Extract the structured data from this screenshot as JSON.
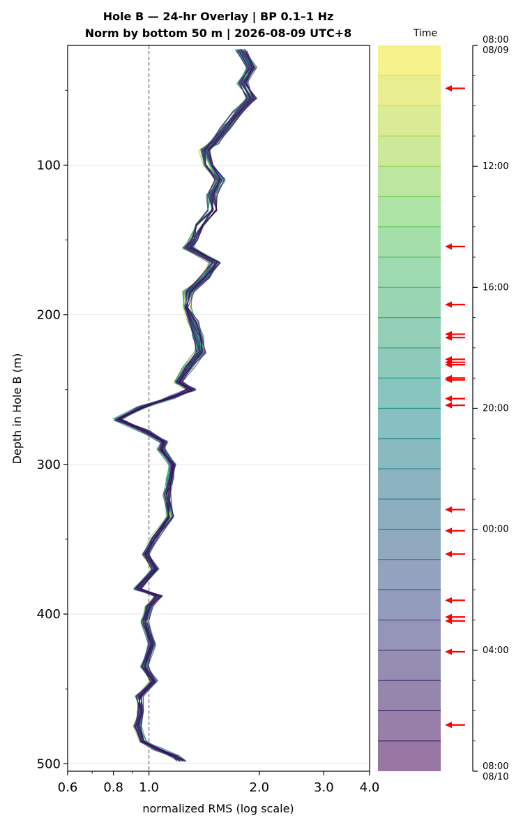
{
  "chart_data": {
    "type": "line",
    "title_line1": "Hole B — 24-hr Overlay  |  BP 0.1–1 Hz",
    "title_line2": "Norm by bottom 50 m  |  2026-08-09 UTC+8",
    "xlabel": "normalized RMS  (log scale)",
    "ylabel": "Depth in Hole B (m)",
    "x_scale": "log",
    "xlim": [
      0.6,
      4.0
    ],
    "ylim": [
      505,
      20
    ],
    "x_ticks": [
      0.6,
      0.8,
      1.0,
      2.0,
      3.0,
      4.0
    ],
    "x_tick_labels": [
      "0.6",
      "0.8",
      "1.0",
      "2.0",
      "3.0",
      "4.0"
    ],
    "y_ticks": [
      100,
      200,
      300,
      400,
      500
    ],
    "y_tick_labels": [
      "100",
      "200",
      "300",
      "400",
      "500"
    ],
    "reference_line_x": 1.0,
    "grid": "horizontal",
    "series_count": 48,
    "color_map": "viridis",
    "profile": {
      "depth": [
        23,
        35,
        45,
        55,
        65,
        75,
        85,
        90,
        100,
        110,
        120,
        130,
        140,
        150,
        155,
        165,
        175,
        185,
        195,
        205,
        215,
        225,
        235,
        245,
        250,
        255,
        262,
        270,
        278,
        285,
        290,
        300,
        310,
        320,
        335,
        350,
        360,
        370,
        383,
        388,
        395,
        405,
        420,
        435,
        445,
        455,
        465,
        475,
        485,
        490,
        495,
        498
      ],
      "rms": [
        1.78,
        1.9,
        1.8,
        1.9,
        1.75,
        1.62,
        1.5,
        1.42,
        1.46,
        1.56,
        1.48,
        1.5,
        1.38,
        1.32,
        1.28,
        1.52,
        1.42,
        1.28,
        1.26,
        1.32,
        1.36,
        1.38,
        1.28,
        1.2,
        1.3,
        1.16,
        0.95,
        0.82,
        0.98,
        1.1,
        1.08,
        1.16,
        1.14,
        1.12,
        1.14,
        1.03,
        0.98,
        1.04,
        0.93,
        1.06,
        1.0,
        0.97,
        1.02,
        0.97,
        1.03,
        0.94,
        0.95,
        0.93,
        0.96,
        1.05,
        1.18,
        1.22
      ]
    },
    "colorbar": {
      "label": "Time",
      "tick_labels": [
        "08:00\n08/09",
        "12:00",
        "16:00",
        "20:00",
        "00:00",
        "04:00",
        "08:00\n08/10"
      ],
      "tick_hours": [
        0,
        4,
        8,
        12,
        16,
        20,
        24
      ],
      "band_count": 24,
      "marker_hours": [
        1.42,
        6.65,
        8.57,
        9.55,
        9.66,
        10.38,
        10.48,
        10.56,
        11.0,
        11.06,
        11.68,
        11.9,
        15.35,
        16.05,
        16.82,
        18.35,
        18.9,
        19.03,
        20.05,
        22.47
      ]
    },
    "colors": {
      "arrow": "#ff0000",
      "refline": "#777777",
      "grid": "#e6e6e6"
    }
  }
}
